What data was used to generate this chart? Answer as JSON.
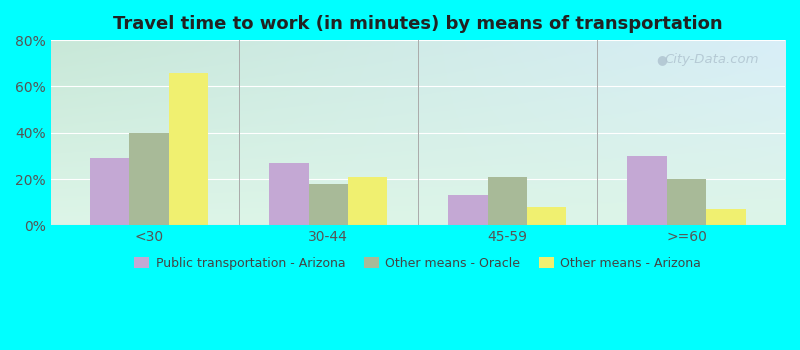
{
  "title": "Travel time to work (in minutes) by means of transportation",
  "categories": [
    "<30",
    "30-44",
    "45-59",
    ">=60"
  ],
  "series": {
    "Public transportation - Arizona": [
      29,
      27,
      13,
      30
    ],
    "Other means - Oracle": [
      40,
      18,
      21,
      20
    ],
    "Other means - Arizona": [
      66,
      21,
      8,
      7
    ]
  },
  "colors": {
    "Public transportation - Arizona": "#c4a8d4",
    "Other means - Oracle": "#a8ba98",
    "Other means - Arizona": "#f0f070"
  },
  "ylim": [
    0,
    80
  ],
  "yticks": [
    0,
    20,
    40,
    60,
    80
  ],
  "ytick_labels": [
    "0%",
    "20%",
    "40%",
    "60%",
    "80%"
  ],
  "background_color": "#00ffff",
  "plot_bg_topleft": "#c8e8d8",
  "plot_bg_topright": "#d8eef8",
  "plot_bg_bottom": "#ddf5e8",
  "bar_width": 0.22,
  "title_fontsize": 13,
  "watermark_text": "City-Data.com"
}
